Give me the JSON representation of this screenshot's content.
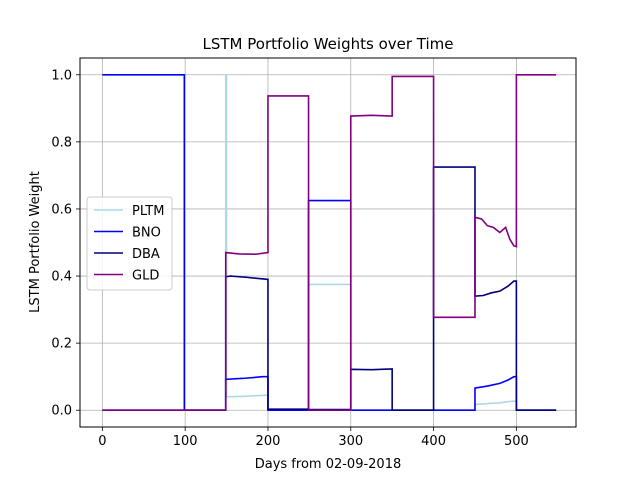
{
  "chart_data": {
    "type": "line",
    "title": "LSTM Portfolio Weights over Time",
    "xlabel": "Days from 02-09-2018",
    "ylabel": "LSTM Portfolio Weight",
    "xlim": [
      -27,
      572
    ],
    "ylim": [
      -0.05,
      1.05
    ],
    "xticks": [
      0,
      100,
      200,
      300,
      400,
      500
    ],
    "yticks": [
      0.0,
      0.2,
      0.4,
      0.6,
      0.8,
      1.0
    ],
    "xtick_labels": [
      "0",
      "100",
      "200",
      "300",
      "400",
      "500"
    ],
    "ytick_labels": [
      "0.0",
      "0.2",
      "0.4",
      "0.6",
      "0.8",
      "1.0"
    ],
    "grid": true,
    "legend_position": "center-left",
    "series": [
      {
        "name": "PLTM",
        "color": "#add8e6",
        "points": [
          [
            0,
            0.0
          ],
          [
            149,
            0.0
          ],
          [
            149,
            1.0
          ],
          [
            150,
            1.0
          ],
          [
            150,
            0.04
          ],
          [
            175,
            0.042
          ],
          [
            200,
            0.045
          ],
          [
            200,
            0.0
          ],
          [
            249,
            0.0
          ],
          [
            249,
            0.375
          ],
          [
            300,
            0.375
          ],
          [
            300,
            0.0
          ],
          [
            450,
            0.0
          ],
          [
            450,
            0.017
          ],
          [
            465,
            0.02
          ],
          [
            480,
            0.022
          ],
          [
            495,
            0.027
          ],
          [
            500,
            0.027
          ],
          [
            500,
            0.0
          ],
          [
            548,
            0.0
          ]
        ]
      },
      {
        "name": "BNO",
        "color": "#0000ff",
        "points": [
          [
            0,
            1.0
          ],
          [
            99,
            1.0
          ],
          [
            99,
            0.0
          ],
          [
            149,
            0.0
          ],
          [
            149,
            0.092
          ],
          [
            170,
            0.095
          ],
          [
            185,
            0.098
          ],
          [
            193,
            0.1
          ],
          [
            200,
            0.1
          ],
          [
            200,
            0.0
          ],
          [
            249,
            0.0
          ],
          [
            249,
            0.625
          ],
          [
            300,
            0.625
          ],
          [
            300,
            0.0
          ],
          [
            450,
            0.0
          ],
          [
            450,
            0.066
          ],
          [
            465,
            0.072
          ],
          [
            480,
            0.08
          ],
          [
            490,
            0.09
          ],
          [
            497,
            0.1
          ],
          [
            500,
            0.1
          ],
          [
            500,
            0.0
          ],
          [
            548,
            0.0
          ]
        ]
      },
      {
        "name": "DBA",
        "color": "#000080",
        "points": [
          [
            0,
            0.0
          ],
          [
            149,
            0.0
          ],
          [
            149,
            0.398
          ],
          [
            155,
            0.4
          ],
          [
            175,
            0.396
          ],
          [
            200,
            0.39
          ],
          [
            200,
            0.003
          ],
          [
            249,
            0.003
          ],
          [
            249,
            0.002
          ],
          [
            300,
            0.002
          ],
          [
            300,
            0.122
          ],
          [
            325,
            0.121
          ],
          [
            350,
            0.123
          ],
          [
            350,
            0.0
          ],
          [
            400,
            0.0
          ],
          [
            400,
            0.725
          ],
          [
            450,
            0.725
          ],
          [
            450,
            0.34
          ],
          [
            460,
            0.342
          ],
          [
            470,
            0.35
          ],
          [
            480,
            0.355
          ],
          [
            490,
            0.37
          ],
          [
            497,
            0.385
          ],
          [
            500,
            0.385
          ],
          [
            500,
            0.0
          ],
          [
            548,
            0.0
          ]
        ]
      },
      {
        "name": "GLD",
        "color": "#800080",
        "points": [
          [
            0,
            0.0
          ],
          [
            149,
            0.0
          ],
          [
            149,
            0.47
          ],
          [
            165,
            0.466
          ],
          [
            185,
            0.465
          ],
          [
            200,
            0.47
          ],
          [
            200,
            0.937
          ],
          [
            249,
            0.937
          ],
          [
            249,
            0.0
          ],
          [
            300,
            0.0
          ],
          [
            300,
            0.877
          ],
          [
            325,
            0.879
          ],
          [
            350,
            0.877
          ],
          [
            350,
            0.995
          ],
          [
            400,
            0.995
          ],
          [
            400,
            0.277
          ],
          [
            450,
            0.277
          ],
          [
            450,
            0.575
          ],
          [
            458,
            0.57
          ],
          [
            465,
            0.55
          ],
          [
            472,
            0.545
          ],
          [
            480,
            0.53
          ],
          [
            487,
            0.545
          ],
          [
            492,
            0.51
          ],
          [
            497,
            0.49
          ],
          [
            500,
            0.488
          ],
          [
            500,
            1.0
          ],
          [
            548,
            1.0
          ]
        ]
      }
    ]
  }
}
